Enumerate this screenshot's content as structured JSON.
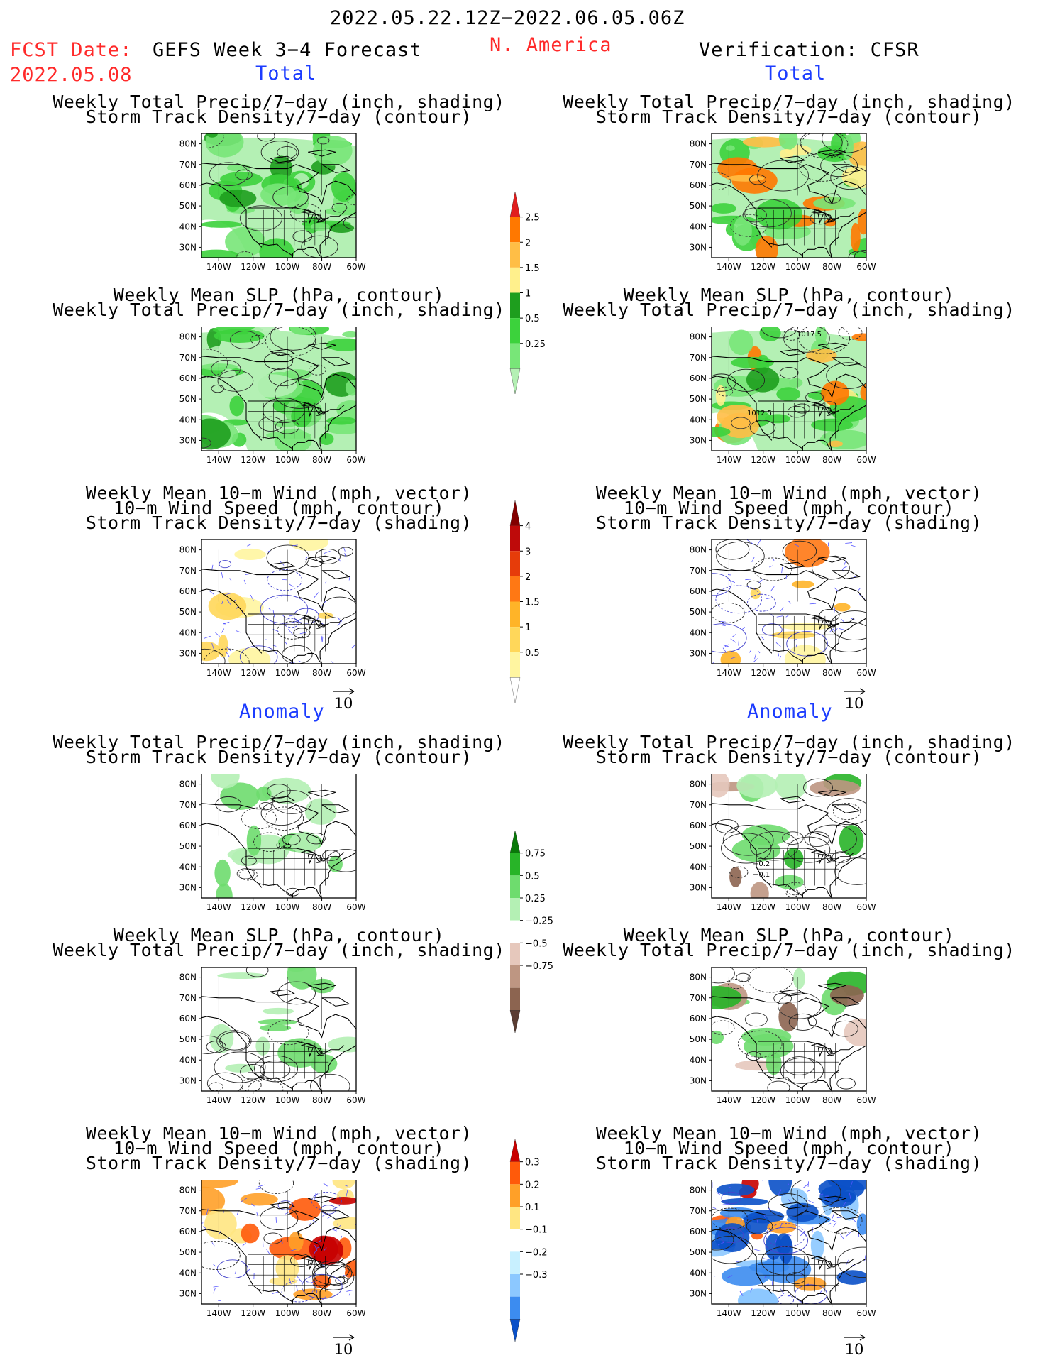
{
  "header": {
    "date_range": "2022.05.22.12Z−2022.06.05.06Z",
    "fcst_label": "FCST Date:",
    "fcst_date": "2022.05.08",
    "model_label": "GEFS Week 3−4 Forecast",
    "region": "N. America",
    "verification": "Verification: CFSR"
  },
  "sections": {
    "total": "Total",
    "anomaly": "Anomaly"
  },
  "panel_titles": {
    "precip_storm": [
      "Weekly Total Precip/7−day (inch, shading)",
      "Storm Track Density/7−day (contour)"
    ],
    "slp_precip": [
      "Weekly Mean SLP (hPa, contour)",
      "Weekly Total Precip/7−day (inch, shading)"
    ],
    "wind_storm": [
      "Weekly Mean 10−m Wind (mph, vector)",
      "10−m Wind Speed (mph, contour)",
      "Storm Track Density/7−day (shading)"
    ]
  },
  "axes": {
    "lat_ticks": [
      "80N",
      "70N",
      "60N",
      "50N",
      "40N",
      "30N"
    ],
    "lon_ticks": [
      "140W",
      "120W",
      "100W",
      "80W",
      "60W"
    ],
    "vector_ref": "10"
  },
  "contour_labels": {
    "slp_high": "1017.5",
    "slp_low": "1012.5",
    "anom_storm_fcst": "0.25",
    "anom_storm_obs_1": "−0.2",
    "anom_storm_obs_2": "−0.1"
  },
  "chart_data": [
    {
      "type": "heatmap",
      "title": "Weekly Total Precip/7−day (inch, shading)",
      "levels": [
        0.25,
        0.5,
        1,
        1.5,
        2,
        2.5
      ],
      "tick_labels": [
        "0.25",
        "0.5",
        "1",
        "1.5",
        "2",
        "2.5"
      ],
      "colors": [
        "#b4f0b4",
        "#78e678",
        "#3cd23c",
        "#1e9e1e",
        "#fff08c",
        "#ffbe46",
        "#ff7800",
        "#e11e1e"
      ]
    },
    {
      "type": "heatmap",
      "title": "Storm Track Density/7−day (shading)",
      "levels": [
        0.5,
        1,
        1.5,
        2,
        3,
        4
      ],
      "tick_labels": [
        "0.5",
        "1",
        "1.5",
        "2",
        "3",
        "4"
      ],
      "colors": [
        "#ffffff",
        "#fff5a0",
        "#ffd75a",
        "#ffb428",
        "#ff7814",
        "#e63c0a",
        "#be0a0a",
        "#820000"
      ]
    },
    {
      "type": "heatmap",
      "title": "Weekly Total Precip/7−day anomaly (inch, shading)",
      "levels": [
        -0.75,
        -0.5,
        -0.25,
        0.25,
        0.5,
        0.75
      ],
      "tick_labels": [
        "−0.75",
        "−0.5",
        "−0.25",
        "0.25",
        "0.5",
        "0.75"
      ],
      "colors": [
        "#5a3c32",
        "#8c6450",
        "#be9682",
        "#e6c8bc",
        "#ffffff",
        "#b4f0b4",
        "#6edc6e",
        "#28b428",
        "#0a780a"
      ]
    },
    {
      "type": "heatmap",
      "title": "Storm Track Density/7−day anomaly (shading)",
      "levels": [
        -0.3,
        -0.2,
        -0.1,
        0.1,
        0.2,
        0.3
      ],
      "tick_labels": [
        "−0.3",
        "−0.2",
        "−0.1",
        "0.1",
        "0.2",
        "0.3"
      ],
      "colors": [
        "#0a50c8",
        "#3c8cf0",
        "#8cc8ff",
        "#c8f0ff",
        "#ffffff",
        "#ffe682",
        "#ffa028",
        "#ff5a0a",
        "#c80000"
      ]
    }
  ]
}
